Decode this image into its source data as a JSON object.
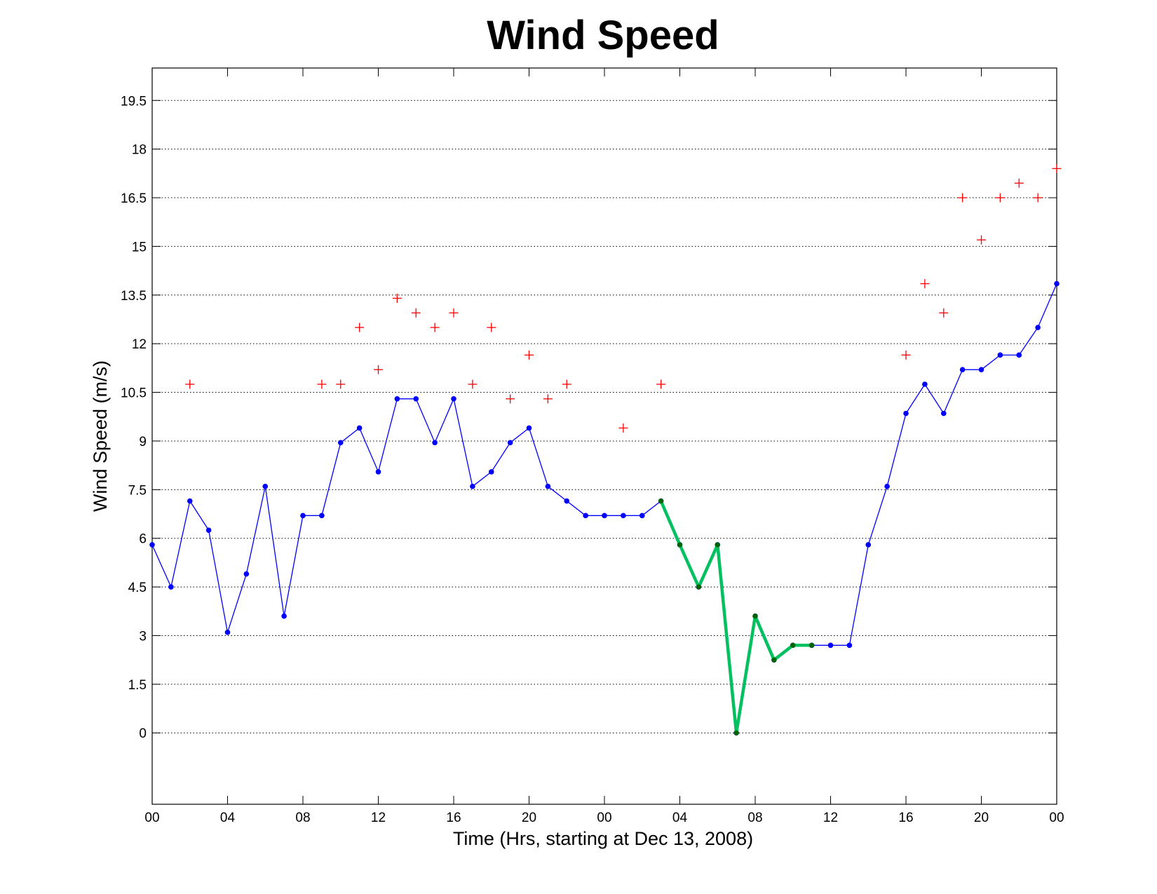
{
  "chart_data": {
    "type": "line",
    "title": "Wind Speed",
    "xlabel": "Time (Hrs, starting at Dec 13, 2008)",
    "ylabel": "Wind Speed (m/s)",
    "x_unit": "hours",
    "xlim": [
      0,
      48
    ],
    "ylim": [
      -2.2,
      20.5
    ],
    "yticks": [
      0,
      1.5,
      3,
      4.5,
      6,
      7.5,
      9,
      10.5,
      12,
      13.5,
      15,
      16.5,
      18,
      19.5
    ],
    "ytick_labels": [
      "0",
      "1.5",
      "3",
      "4.5",
      "6",
      "7.5",
      "9",
      "10.5",
      "12",
      "13.5",
      "15",
      "16.5",
      "18",
      "19.5"
    ],
    "xticks": [
      0,
      4,
      8,
      12,
      16,
      20,
      24,
      28,
      32,
      36,
      40,
      44,
      48
    ],
    "xtick_labels": [
      "00",
      "04",
      "08",
      "12",
      "16",
      "20",
      "00",
      "04",
      "08",
      "12",
      "16",
      "20",
      "00"
    ],
    "grid": {
      "y": true,
      "x": false,
      "style": "dotted"
    },
    "series": [
      {
        "role": "observed",
        "style": "line-dots",
        "color": "#0000ff",
        "x": [
          0,
          1,
          2,
          3,
          4,
          5,
          6,
          7,
          8,
          9,
          10,
          11,
          12,
          13,
          14,
          15,
          16,
          17,
          18,
          19,
          20,
          21,
          22,
          23,
          24,
          25,
          26,
          27,
          28,
          29,
          30,
          31,
          32,
          33,
          34,
          35,
          36,
          37,
          38,
          39,
          40,
          41,
          42,
          43,
          44,
          45,
          46,
          47,
          48
        ],
        "y": [
          5.8,
          4.5,
          7.15,
          6.25,
          3.1,
          4.9,
          7.6,
          3.6,
          6.7,
          6.7,
          8.95,
          9.4,
          8.05,
          10.3,
          10.3,
          8.95,
          10.3,
          7.6,
          8.05,
          8.95,
          9.4,
          7.6,
          7.15,
          6.7,
          6.7,
          6.7,
          6.7,
          7.15,
          5.8,
          4.5,
          5.8,
          0.0,
          3.6,
          2.25,
          2.7,
          2.7,
          2.7,
          2.7,
          5.8,
          7.6,
          9.85,
          10.75,
          9.85,
          11.2,
          11.2,
          11.65,
          11.65,
          12.5,
          13.85
        ]
      },
      {
        "role": "highlighted-segment",
        "style": "thick-line-dots",
        "color": "#00c060",
        "marker_color": "#006400",
        "x": [
          27,
          28,
          29,
          30,
          31,
          32,
          33,
          34,
          35
        ],
        "y": [
          7.15,
          5.8,
          4.5,
          5.8,
          0.0,
          3.6,
          2.25,
          2.7,
          2.7
        ]
      },
      {
        "role": "gusts",
        "style": "plus-markers",
        "color": "#ff0000",
        "x": [
          2,
          9,
          10,
          11,
          12,
          13,
          14,
          15,
          16,
          17,
          18,
          19,
          20,
          21,
          22,
          25,
          27,
          40,
          41,
          42,
          43,
          44,
          45,
          46,
          47,
          48
        ],
        "y": [
          10.75,
          10.75,
          10.75,
          12.5,
          11.2,
          13.4,
          12.95,
          12.5,
          12.95,
          10.75,
          12.5,
          10.3,
          11.65,
          10.3,
          10.75,
          9.4,
          10.75,
          11.65,
          13.85,
          12.95,
          16.5,
          15.2,
          16.5,
          16.95,
          16.5,
          17.4
        ]
      }
    ]
  }
}
